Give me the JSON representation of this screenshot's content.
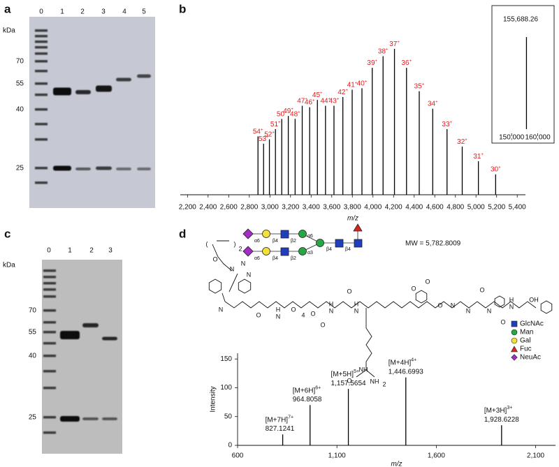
{
  "figure": {
    "panel_a": {
      "label": "a",
      "lanes": [
        0,
        1,
        2,
        3,
        4,
        5
      ],
      "unit": "kDa",
      "markers": [
        70,
        55,
        40,
        25
      ]
    },
    "panel_b_label": "b",
    "panel_c": {
      "label": "c",
      "lanes": [
        0,
        1,
        2,
        3
      ],
      "unit": "kDa",
      "markers": [
        70,
        55,
        40,
        25
      ]
    },
    "panel_d_label": "d",
    "mw": "MW = 5,782.8009",
    "glycan_legend": [
      "GlcNAc",
      "Man",
      "Gal",
      "Fuc",
      "NeuAc"
    ],
    "linkages": [
      "α6",
      "β4",
      "β2",
      "α6",
      "α6",
      "β4",
      "β2",
      "α3",
      "β4",
      "β4"
    ],
    "atoms": [
      "(",
      ")",
      "2",
      "O",
      "N",
      "N",
      "N",
      "N",
      "O",
      "H",
      "N",
      "O",
      "4",
      "O",
      "H",
      "N",
      "O",
      "H",
      "N",
      "O",
      "NH",
      "O",
      "NH",
      "2",
      "O",
      "O",
      "N",
      "O",
      "N",
      "O",
      "N",
      "O",
      "H",
      "N",
      "OH"
    ]
  },
  "chart_data": [
    {
      "type": "spectrum",
      "color": "#000000",
      "label_color": "#e31a1c",
      "x": [
        5190.6,
        5023.2,
        4866.3,
        4718.8,
        4580.1,
        4449.2,
        4325.7,
        4208.8,
        4098.1,
        3993.0,
        3893.2,
        3798.3,
        3707.8,
        3621.7,
        3539.4,
        3460.8,
        3385.6,
        3313.5,
        3244.5,
        3178.3,
        3114.8,
        3053.7,
        2995.0,
        2938.5,
        2884.1
      ],
      "values": [
        14,
        23,
        33,
        45,
        59,
        71,
        87,
        100,
        95,
        87,
        73,
        72,
        67,
        61,
        61,
        65,
        60,
        61,
        52,
        54,
        52,
        45,
        38,
        35,
        40
      ],
      "charges": [
        30,
        31,
        32,
        33,
        34,
        35,
        36,
        37,
        38,
        39,
        40,
        41,
        42,
        43,
        44,
        45,
        46,
        47,
        48,
        49,
        50,
        51,
        52,
        53,
        54
      ],
      "charge_sign": "+",
      "x_label": "m/z",
      "xlim": [
        2130,
        5480
      ],
      "xticks": [
        {
          "value": 2200,
          "label": "2,200"
        },
        {
          "value": 2400,
          "label": "2,400"
        },
        {
          "value": 2600,
          "label": "2,600"
        },
        {
          "value": 2800,
          "label": "2,800"
        },
        {
          "value": 3000,
          "label": "3,000"
        },
        {
          "value": 3200,
          "label": "3,200"
        },
        {
          "value": 3400,
          "label": "3,400"
        },
        {
          "value": 3600,
          "label": "3,600"
        },
        {
          "value": 3800,
          "label": "3,800"
        },
        {
          "value": 4000,
          "label": "4,000"
        },
        {
          "value": 4200,
          "label": "4,200"
        },
        {
          "value": 4400,
          "label": "4,400"
        },
        {
          "value": 4600,
          "label": "4,600"
        },
        {
          "value": 4800,
          "label": "4,800"
        },
        {
          "value": 5000,
          "label": "5,000"
        },
        {
          "value": 5200,
          "label": "5,200"
        },
        {
          "value": 5400,
          "label": "5,400"
        }
      ],
      "ylim": [
        0,
        100
      ]
    },
    {
      "type": "spectrum",
      "color": "#000000",
      "x": [
        155688.26
      ],
      "values": [
        100
      ],
      "value_labels": [
        "155,688.26"
      ],
      "xlim": [
        143000,
        166000
      ],
      "xticks": [
        {
          "value": 150000,
          "label": "150,000"
        },
        {
          "value": 160000,
          "label": "160,000"
        }
      ],
      "ylim": [
        0,
        110
      ]
    },
    {
      "type": "spectrum",
      "color": "#000000",
      "x": [
        827.1241,
        964.8058,
        1157.5654,
        1446.6993,
        1928.6228
      ],
      "x_labels": [
        "827.1241",
        "964.8058",
        "1,157.5654",
        "1,446.6993",
        "1,928.6228"
      ],
      "values": [
        19,
        70,
        98,
        118,
        35
      ],
      "ions": [
        "[M+7H]",
        "[M+6H]",
        "[M+5H]",
        "[M+4H]",
        "[M+3H]"
      ],
      "charges": [
        "7+",
        "6+",
        "5+",
        "4+",
        "3+"
      ],
      "x_label": "m/z",
      "y_label": "Intensity",
      "xlim": [
        600,
        2200
      ],
      "xticks": [
        600,
        {
          "value": 1100,
          "label": "1,100"
        },
        {
          "value": 1600,
          "label": "1,600"
        },
        {
          "value": 2100,
          "label": "2,100"
        }
      ],
      "ylim": [
        0,
        160
      ],
      "yticks": [
        0,
        50,
        100,
        150
      ]
    }
  ]
}
